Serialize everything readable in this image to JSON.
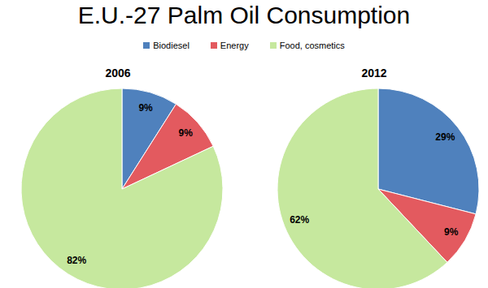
{
  "title": "E.U.-27 Palm Oil Consumption",
  "legend": "top",
  "chart_data": [
    {
      "type": "pie",
      "title": "2006",
      "categories": [
        "Biodiesel",
        "Energy",
        "Food, cosmetics"
      ],
      "values": [
        9,
        9,
        82
      ],
      "value_labels": [
        "9%",
        "9%",
        "82%"
      ],
      "colors": [
        "#4f81bd",
        "#e35a5f",
        "#c6e89e"
      ],
      "data_labels": true
    },
    {
      "type": "pie",
      "title": "2012",
      "categories": [
        "Biodiesel",
        "Energy",
        "Food, cosmetics"
      ],
      "values": [
        29,
        9,
        62
      ],
      "value_labels": [
        "29%",
        "9%",
        "62%"
      ],
      "colors": [
        "#4f81bd",
        "#e35a5f",
        "#c6e89e"
      ],
      "data_labels": true
    }
  ]
}
